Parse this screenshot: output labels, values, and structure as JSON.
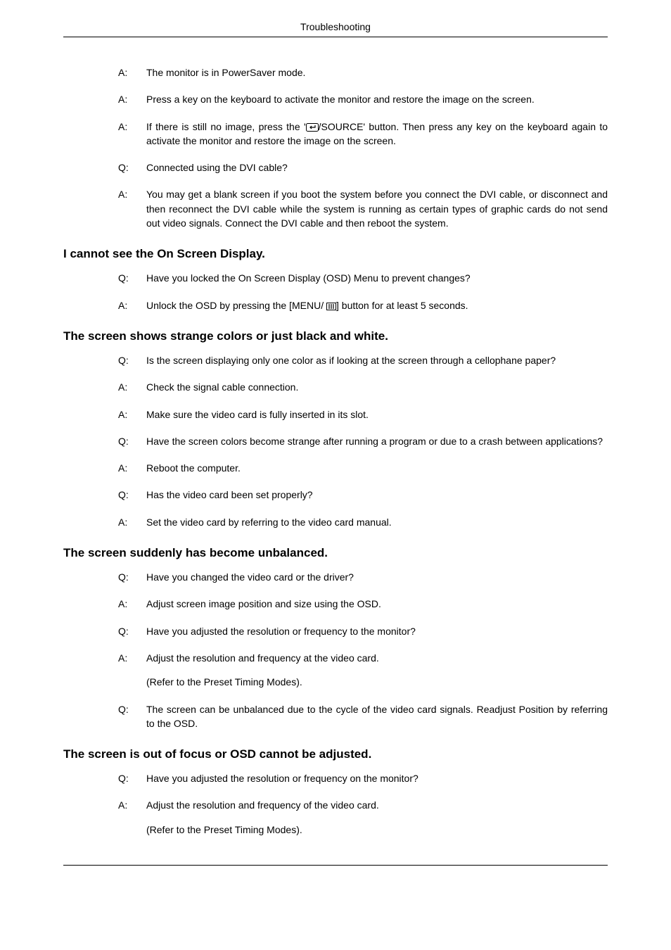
{
  "header": {
    "title": "Troubleshooting"
  },
  "sections": [
    {
      "heading": null,
      "items": [
        {
          "label": "A:",
          "text": "The monitor is in PowerSaver mode."
        },
        {
          "label": "A:",
          "text": "Press a key on the keyboard to activate the monitor and restore the image on the screen."
        },
        {
          "label": "A:",
          "text_pre": "If there is still no image, press the '",
          "icon": "enter-source-icon",
          "text_post": "/SOURCE' button. Then press any key on the keyboard again to activate the monitor and restore the image on the screen."
        },
        {
          "label": "Q:",
          "text": "Connected using the DVI cable?"
        },
        {
          "label": "A:",
          "text": "You may get a blank screen if you boot the system before you connect the DVI cable, or disconnect and then reconnect the DVI cable while the system is running as certain types of graphic cards do not send out video signals. Connect the DVI cable and then reboot the system."
        }
      ]
    },
    {
      "heading": "I cannot see the On Screen Display.",
      "items": [
        {
          "label": "Q:",
          "text": "Have you locked the On Screen Display (OSD) Menu to prevent changes?"
        },
        {
          "label": "A:",
          "text_pre": "Unlock the OSD by pressing the [MENU/ ",
          "icon": "menu-bars-icon",
          "text_post": "] button for at least 5 seconds."
        }
      ]
    },
    {
      "heading": "The screen shows strange colors or just black and white.",
      "items": [
        {
          "label": "Q:",
          "text": "Is the screen displaying only one color as if looking at the screen through a cellophane paper?"
        },
        {
          "label": "A:",
          "text": "Check the signal cable connection."
        },
        {
          "label": "A:",
          "text": "Make sure the video card is fully inserted in its slot."
        },
        {
          "label": "Q:",
          "text": "Have the screen colors become strange after running a program or due to a crash between applications?"
        },
        {
          "label": "A:",
          "text": "Reboot the computer."
        },
        {
          "label": "Q:",
          "text": "Has the video card been set properly?"
        },
        {
          "label": "A:",
          "text": "Set the video card by referring to the video card manual."
        }
      ]
    },
    {
      "heading": "The screen suddenly has become unbalanced.",
      "items": [
        {
          "label": "Q:",
          "text": "Have you changed the video card or the driver?"
        },
        {
          "label": "A:",
          "text": "Adjust screen image position and size using the OSD."
        },
        {
          "label": "Q:",
          "text": "Have you adjusted the resolution or frequency to the monitor?"
        },
        {
          "label": "A:",
          "text": "Adjust the resolution and frequency at the video card.",
          "subtext": "(Refer to the Preset Timing Modes)."
        },
        {
          "label": "Q:",
          "text": "The screen can be unbalanced due to the cycle of the video card signals. Readjust Position by referring to the OSD."
        }
      ]
    },
    {
      "heading": "The screen is out of focus or OSD cannot be adjusted.",
      "items": [
        {
          "label": "Q:",
          "text": "Have you adjusted the resolution or frequency on the monitor?"
        },
        {
          "label": "A:",
          "text": "Adjust the resolution and frequency of the video card.",
          "subtext": "(Refer to the Preset Timing Modes)."
        }
      ]
    }
  ],
  "icons": {
    "enter-source-icon": "enter",
    "menu-bars-icon": "bars"
  }
}
